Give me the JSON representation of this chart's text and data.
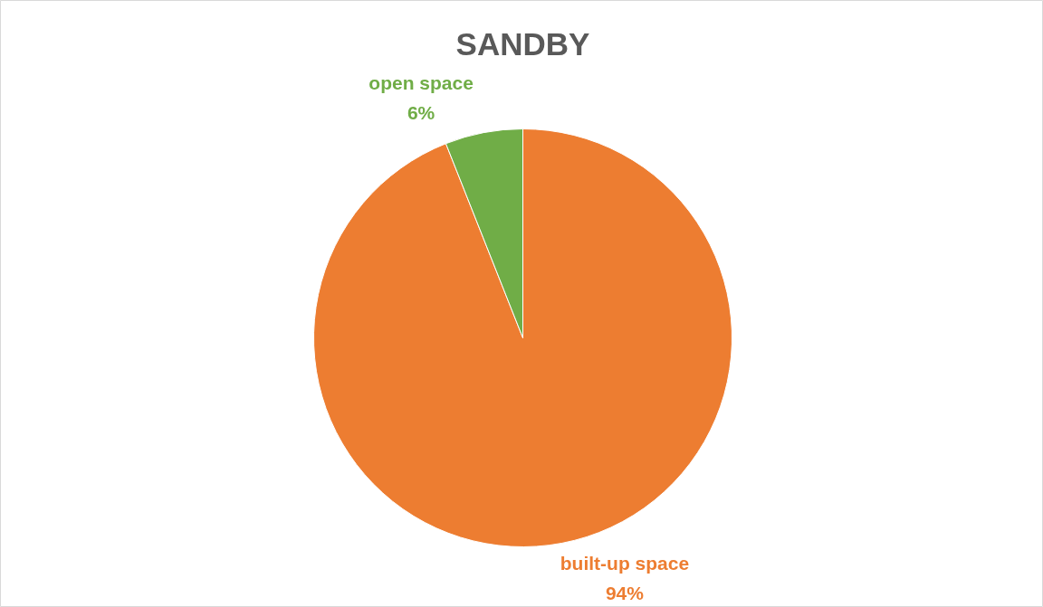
{
  "chart_data": {
    "type": "pie",
    "title": "SANDBY",
    "categories": [
      "built-up space",
      "open space"
    ],
    "values": [
      94,
      6
    ],
    "colors": [
      "#ed7d31",
      "#70ad47"
    ],
    "value_labels": [
      "94%",
      "6%"
    ]
  }
}
